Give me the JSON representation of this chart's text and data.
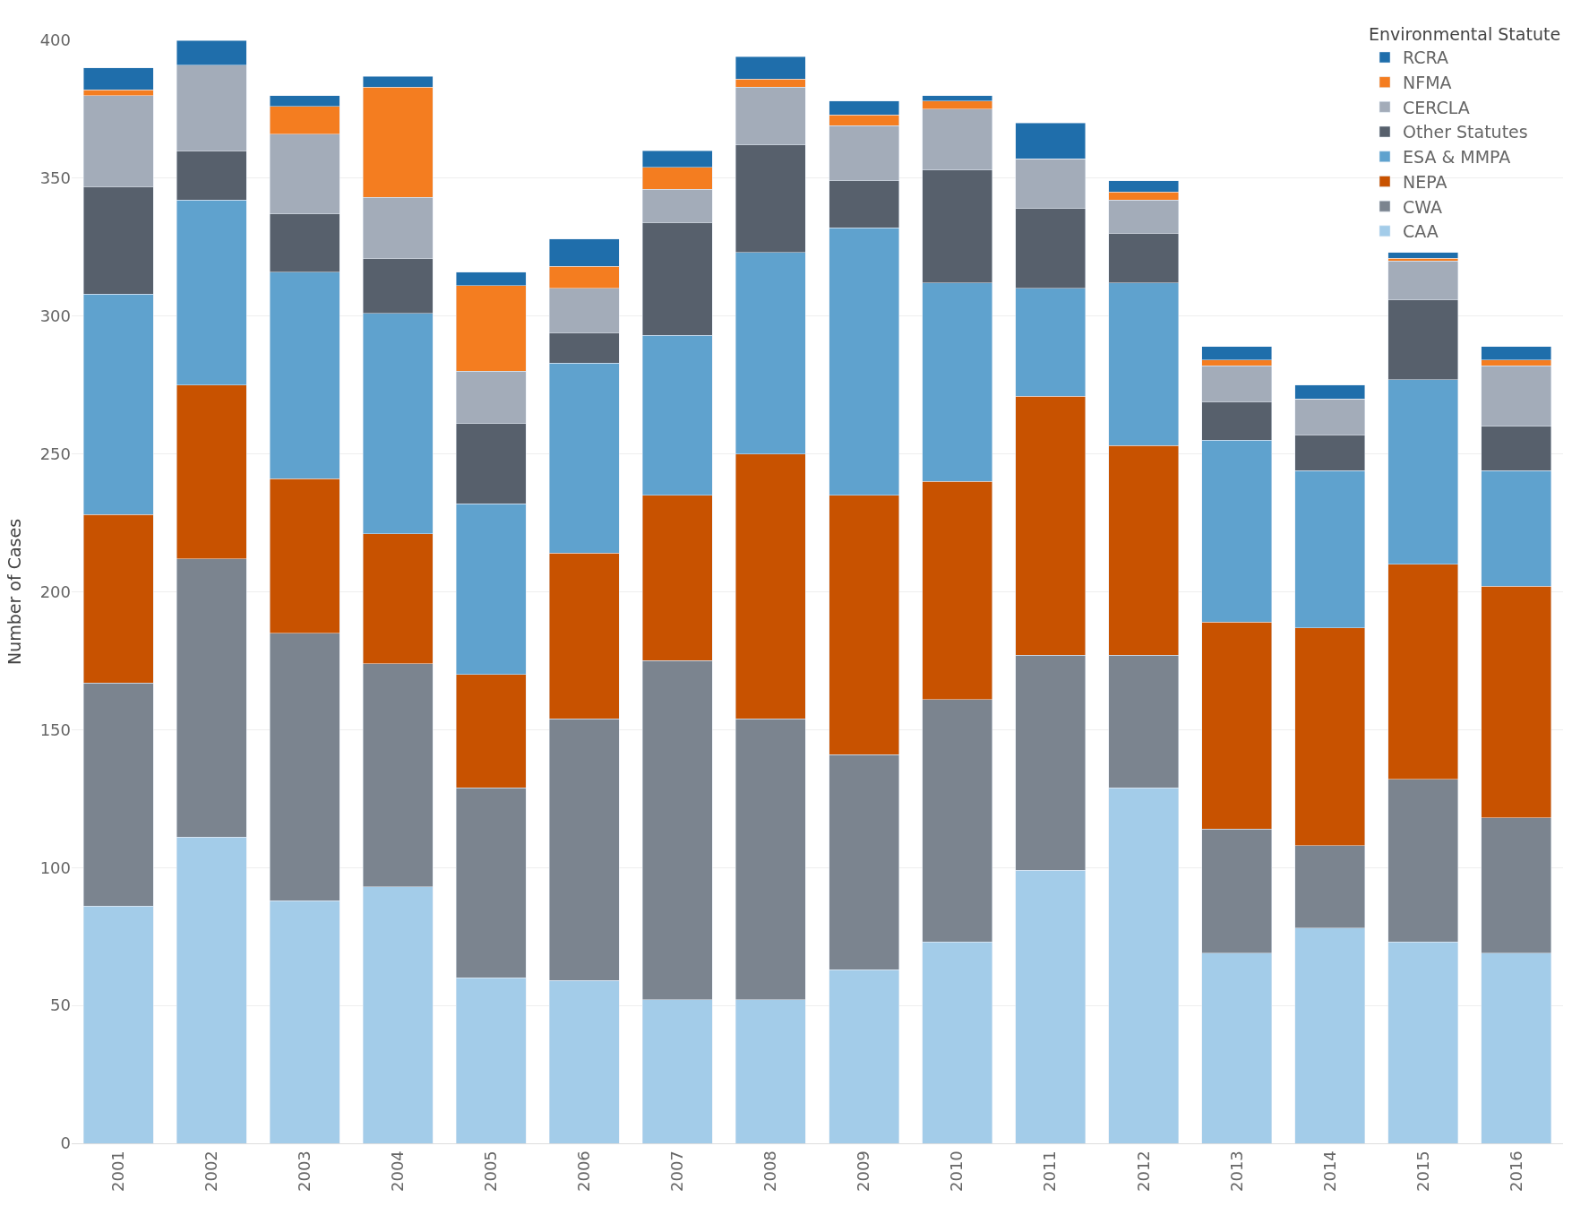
{
  "chart_data": {
    "type": "bar",
    "stacked": true,
    "ylabel": "Number of Cases",
    "legend_title": "Environmental Statute",
    "categories": [
      "2001",
      "2002",
      "2003",
      "2004",
      "2005",
      "2006",
      "2007",
      "2008",
      "2009",
      "2010",
      "2011",
      "2012",
      "2013",
      "2014",
      "2015",
      "2016"
    ],
    "series": [
      {
        "name": "CAA",
        "color": "#a3cce9",
        "values": [
          86,
          111,
          88,
          93,
          60,
          59,
          52,
          52,
          63,
          73,
          99,
          129,
          69,
          78,
          73,
          69
        ]
      },
      {
        "name": "CWA",
        "color": "#7b848f",
        "values": [
          81,
          101,
          97,
          81,
          69,
          95,
          123,
          102,
          78,
          88,
          78,
          48,
          45,
          30,
          59,
          49
        ]
      },
      {
        "name": "NEPA",
        "color": "#c85200",
        "values": [
          61,
          63,
          56,
          47,
          41,
          60,
          60,
          96,
          94,
          79,
          94,
          76,
          75,
          79,
          78,
          84
        ]
      },
      {
        "name": "ESA & MMPA",
        "color": "#5fa2ce",
        "values": [
          80,
          67,
          75,
          80,
          62,
          69,
          58,
          73,
          97,
          72,
          39,
          59,
          66,
          57,
          67,
          42
        ]
      },
      {
        "name": "Other Statutes",
        "color": "#57606c",
        "values": [
          39,
          18,
          21,
          20,
          29,
          11,
          41,
          39,
          17,
          41,
          29,
          18,
          14,
          13,
          29,
          16
        ]
      },
      {
        "name": "CERCLA",
        "color": "#a3acb9",
        "values": [
          33,
          31,
          29,
          22,
          19,
          16,
          12,
          21,
          20,
          22,
          18,
          12,
          13,
          13,
          14,
          22
        ]
      },
      {
        "name": "NFMA",
        "color": "#f47d20",
        "values": [
          2,
          0,
          10,
          40,
          31,
          8,
          8,
          3,
          4,
          3,
          0,
          3,
          2,
          0,
          1,
          2
        ]
      },
      {
        "name": "RCRA",
        "color": "#1f6eab",
        "values": [
          8,
          9,
          4,
          4,
          5,
          10,
          6,
          8,
          5,
          2,
          13,
          4,
          5,
          5,
          2,
          5
        ]
      }
    ],
    "ylim": [
      0,
      400
    ],
    "yticks": [
      0,
      50,
      100,
      150,
      200,
      250,
      300,
      350,
      400
    ],
    "grid": "y",
    "legend": "top right"
  }
}
